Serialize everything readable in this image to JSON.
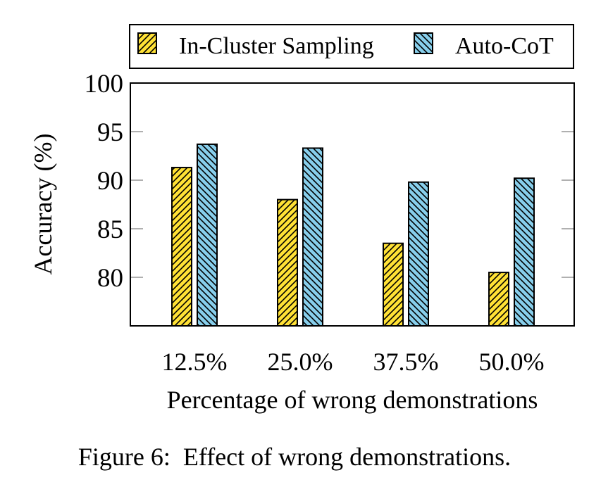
{
  "chart_data": {
    "type": "bar",
    "title": "",
    "xlabel": "Percentage of wrong demonstrations",
    "ylabel": "Accuracy (%)",
    "categories": [
      "12.5%",
      "25.0%",
      "37.5%",
      "50.0%"
    ],
    "ylim": [
      75,
      100
    ],
    "yticks": [
      80,
      85,
      90,
      95,
      100
    ],
    "ytick_labels": [
      "80",
      "85",
      "90",
      "95",
      "100"
    ],
    "grid": false,
    "legend_position": "top, above plot",
    "series": [
      {
        "name": "In-Cluster Sampling",
        "color": "#FFE135",
        "hatch": "north-east lines",
        "values": [
          91.3,
          88.0,
          83.5,
          80.5
        ]
      },
      {
        "name": "Auto-CoT",
        "color": "#87CEEB",
        "hatch": "north-west lines",
        "values": [
          93.7,
          93.3,
          89.8,
          90.2
        ]
      }
    ]
  },
  "caption": "Figure 6:  Effect of wrong demonstrations."
}
